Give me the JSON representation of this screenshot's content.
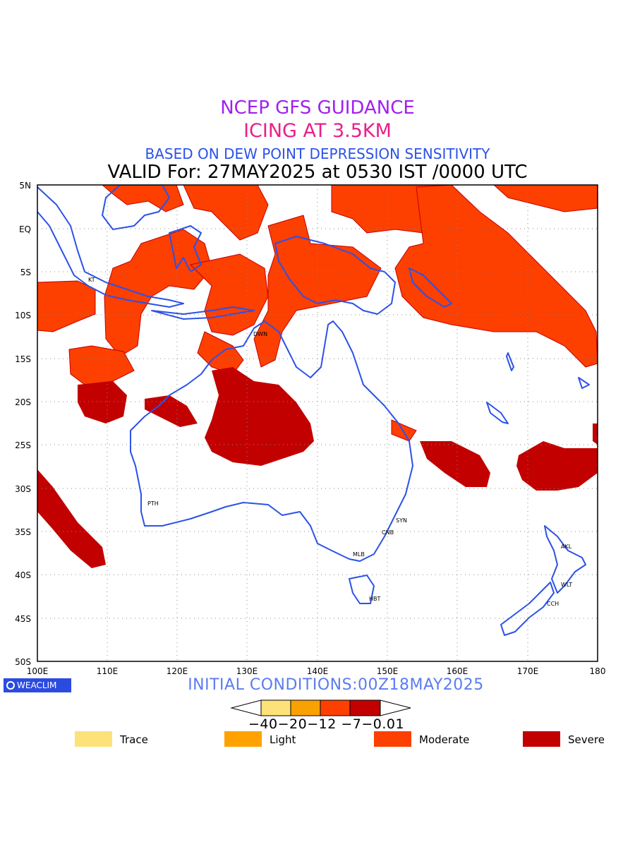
{
  "title": {
    "line1": "NCEP GFS GUIDANCE",
    "line2": "ICING AT 3.5KM",
    "line3": "BASED ON DEW POINT DEPRESSION SENSITIVITY",
    "line4": "VALID For: 27MAY2025 at 0530 IST /0000 UTC"
  },
  "axes": {
    "lat_labels": [
      "5N",
      "EQ",
      "5S",
      "10S",
      "15S",
      "20S",
      "25S",
      "30S",
      "35S",
      "40S",
      "45S",
      "50S"
    ],
    "lon_labels": [
      "100E",
      "110E",
      "120E",
      "130E",
      "140E",
      "150E",
      "160E",
      "170E",
      "180"
    ]
  },
  "cities": [
    "KT",
    "DWN",
    "PTH",
    "SYN",
    "CNB",
    "MLB",
    "HBT",
    "AKL",
    "WLT",
    "CCH"
  ],
  "footer": {
    "logo": "WEACLIM",
    "initial_conditions": "INITIAL CONDITIONS:00Z18MAY2025"
  },
  "colorbar": {
    "ticks": "−40−20−12 −7−0.01",
    "colors": [
      "#fde27a",
      "#f9a100",
      "#fd3f00",
      "#c20000"
    ]
  },
  "legend": [
    {
      "label": "Trace",
      "color": "#fde27a"
    },
    {
      "label": "Light",
      "color": "#ffa200"
    },
    {
      "label": "Moderate",
      "color": "#fd3f00"
    },
    {
      "label": "Severe",
      "color": "#c20000"
    }
  ]
}
